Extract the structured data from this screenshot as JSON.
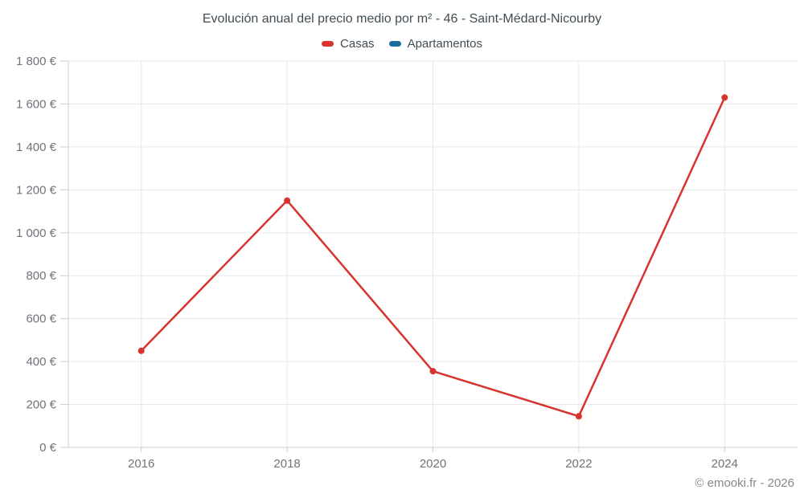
{
  "footer": "© emooki.fr - 2026",
  "colors": {
    "casas": "#d7332f",
    "apartamentos": "#1a6d9e",
    "grid": "#e8e8e8",
    "axis": "#c9cdd0",
    "tick_label": "#6e747a",
    "title_text": "#414d55",
    "footer_text": "#85898c",
    "background": "#ffffff"
  },
  "legend": [
    {
      "label": "Casas",
      "color": "#d7332f"
    },
    {
      "label": "Apartamentos",
      "color": "#1a6d9e"
    }
  ],
  "chart_data": {
    "type": "line",
    "title": "Evolución anual del precio medio por m² - 46 - Saint-Médard-Nicourby",
    "xlabel": "",
    "ylabel": "",
    "categories": [
      "2016",
      "2018",
      "2020",
      "2022",
      "2024"
    ],
    "series": [
      {
        "name": "Casas",
        "color": "#d7332f",
        "values": [
          450,
          1150,
          355,
          145,
          1630
        ]
      },
      {
        "name": "Apartamentos",
        "color": "#1a6d9e",
        "values": []
      }
    ],
    "ylim": [
      0,
      1800
    ],
    "yticks": [
      0,
      200,
      400,
      600,
      800,
      1000,
      1200,
      1400,
      1600,
      1800
    ],
    "ytick_labels": [
      "0 €",
      "200 €",
      "400 €",
      "600 €",
      "800 €",
      "1 000 €",
      "1 200 €",
      "1 400 €",
      "1 600 €",
      "1 800 €"
    ],
    "grid": true,
    "legend_position": "top"
  }
}
